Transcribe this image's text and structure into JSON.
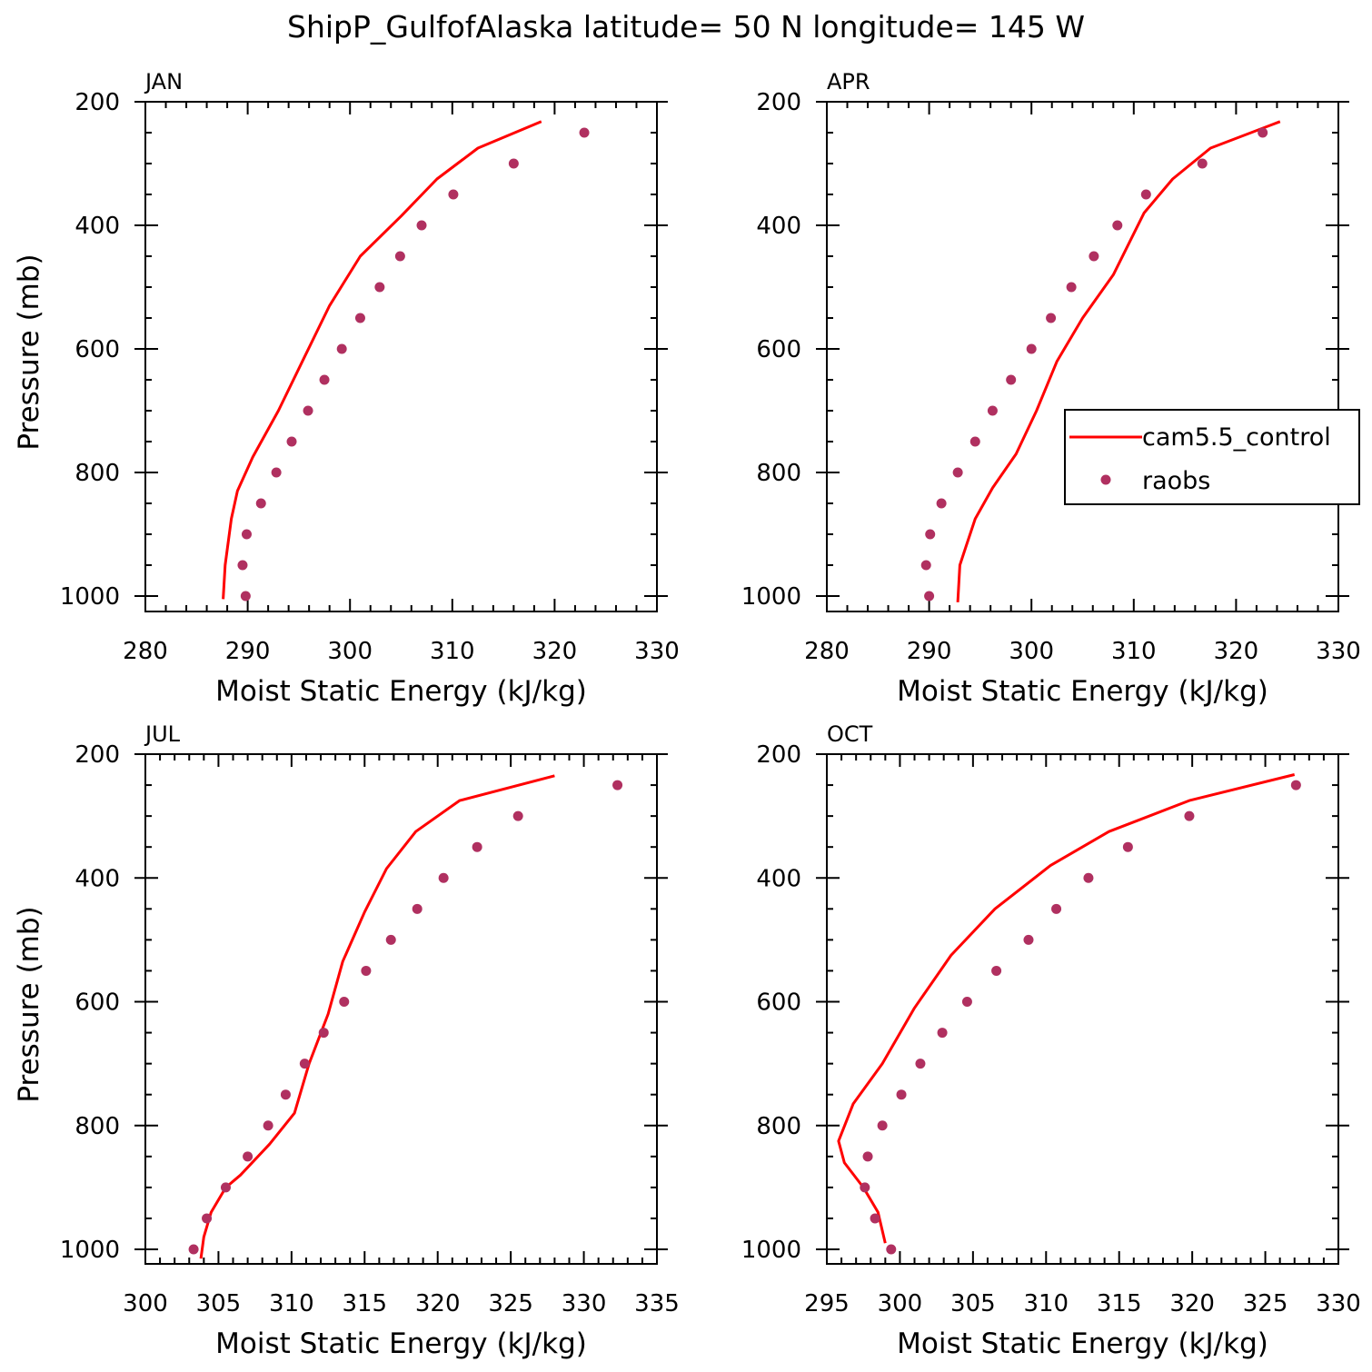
{
  "title": "ShipP_GulfofAlaska  latitude= 50 N longitude= 145 W",
  "colors": {
    "model": "#ff0000",
    "obs": "#b03060",
    "axis": "#000000"
  },
  "legend": {
    "model_label": "cam5.5_control",
    "obs_label": "raobs",
    "panel": "APR"
  },
  "chart_data": [
    {
      "type": "line",
      "panel": "JAN",
      "xlabel": "Moist Static Energy (kJ/kg)",
      "ylabel": "Pressure (mb)",
      "xlim": [
        280,
        330
      ],
      "ylim": [
        1020,
        200
      ],
      "xticks": [
        280,
        290,
        300,
        310,
        320,
        330
      ],
      "yticks": [
        200,
        400,
        600,
        800,
        1000
      ],
      "series": [
        {
          "name": "cam5.5_control",
          "style": "line",
          "x": [
            287.6,
            287.8,
            288.4,
            289.0,
            290.5,
            293.0,
            295.5,
            298.0,
            301.0,
            305.0,
            308.5,
            312.5,
            318.7
          ],
          "y": [
            1005,
            950,
            875,
            830,
            775,
            700,
            615,
            530,
            450,
            385,
            325,
            275,
            232
          ]
        },
        {
          "name": "raobs",
          "style": "markers",
          "x": [
            289.8,
            289.5,
            289.9,
            291.3,
            292.8,
            294.3,
            295.9,
            297.5,
            299.2,
            301.0,
            302.9,
            304.9,
            307.0,
            310.1,
            316.0,
            322.9
          ],
          "y": [
            1000,
            950,
            900,
            850,
            800,
            750,
            700,
            650,
            600,
            550,
            500,
            450,
            400,
            350,
            300,
            250
          ]
        }
      ]
    },
    {
      "type": "line",
      "panel": "APR",
      "xlabel": "Moist Static Energy (kJ/kg)",
      "ylabel": "",
      "xlim": [
        280,
        330
      ],
      "ylim": [
        1020,
        200
      ],
      "xticks": [
        280,
        290,
        300,
        310,
        320,
        330
      ],
      "yticks": [
        200,
        400,
        600,
        800,
        1000
      ],
      "series": [
        {
          "name": "cam5.5_control",
          "style": "line",
          "x": [
            292.8,
            293.0,
            293.6,
            294.5,
            296.2,
            298.5,
            300.5,
            302.5,
            305.0,
            308.0,
            311.0,
            313.8,
            317.5,
            324.3
          ],
          "y": [
            1010,
            950,
            920,
            875,
            825,
            770,
            700,
            620,
            550,
            480,
            380,
            325,
            275,
            232
          ]
        },
        {
          "name": "raobs",
          "style": "markers",
          "x": [
            290.0,
            289.7,
            290.1,
            291.2,
            292.8,
            294.5,
            296.2,
            298.0,
            300.0,
            301.9,
            303.9,
            306.1,
            308.4,
            311.2,
            316.7,
            322.6
          ],
          "y": [
            1000,
            950,
            900,
            850,
            800,
            750,
            700,
            650,
            600,
            550,
            500,
            450,
            400,
            350,
            300,
            250
          ]
        }
      ]
    },
    {
      "type": "line",
      "panel": "JUL",
      "xlabel": "Moist Static Energy (kJ/kg)",
      "ylabel": "Pressure (mb)",
      "xlim": [
        300,
        335
      ],
      "ylim": [
        1020,
        200
      ],
      "xticks": [
        300,
        305,
        310,
        315,
        320,
        325,
        330,
        335
      ],
      "yticks": [
        200,
        400,
        600,
        800,
        1000
      ],
      "series": [
        {
          "name": "cam5.5_control",
          "style": "line",
          "x": [
            303.8,
            304.0,
            304.5,
            305.5,
            306.5,
            308.5,
            310.2,
            311.2,
            312.5,
            313.5,
            315.0,
            316.5,
            318.5,
            321.5,
            328.0
          ],
          "y": [
            1015,
            980,
            940,
            900,
            880,
            830,
            780,
            700,
            620,
            535,
            455,
            385,
            325,
            275,
            235
          ]
        },
        {
          "name": "raobs",
          "style": "markers",
          "x": [
            303.3,
            304.2,
            305.5,
            307.0,
            308.4,
            309.6,
            310.9,
            312.2,
            313.6,
            315.1,
            316.8,
            318.6,
            320.4,
            322.7,
            325.5,
            332.3
          ],
          "y": [
            1000,
            950,
            900,
            850,
            800,
            750,
            700,
            650,
            600,
            550,
            500,
            450,
            400,
            350,
            300,
            250
          ]
        }
      ]
    },
    {
      "type": "line",
      "panel": "OCT",
      "xlabel": "Moist Static Energy (kJ/kg)",
      "ylabel": "",
      "xlim": [
        295,
        330
      ],
      "ylim": [
        1020,
        200
      ],
      "xticks": [
        295,
        300,
        305,
        310,
        315,
        320,
        325,
        330
      ],
      "yticks": [
        200,
        400,
        600,
        800,
        1000
      ],
      "series": [
        {
          "name": "cam5.5_control",
          "style": "line",
          "x": [
            299.0,
            298.5,
            297.5,
            296.2,
            295.8,
            296.8,
            298.8,
            301.0,
            303.5,
            306.5,
            310.3,
            314.3,
            319.8,
            327.0
          ],
          "y": [
            990,
            940,
            900,
            860,
            825,
            765,
            700,
            610,
            525,
            450,
            380,
            325,
            275,
            233
          ]
        },
        {
          "name": "raobs",
          "style": "markers",
          "x": [
            299.4,
            298.3,
            297.6,
            297.8,
            298.8,
            300.1,
            301.4,
            302.9,
            304.6,
            306.6,
            308.8,
            310.7,
            312.9,
            315.6,
            319.8,
            327.1
          ],
          "y": [
            1000,
            950,
            900,
            850,
            800,
            750,
            700,
            650,
            600,
            550,
            500,
            450,
            400,
            350,
            300,
            250
          ]
        }
      ]
    }
  ]
}
